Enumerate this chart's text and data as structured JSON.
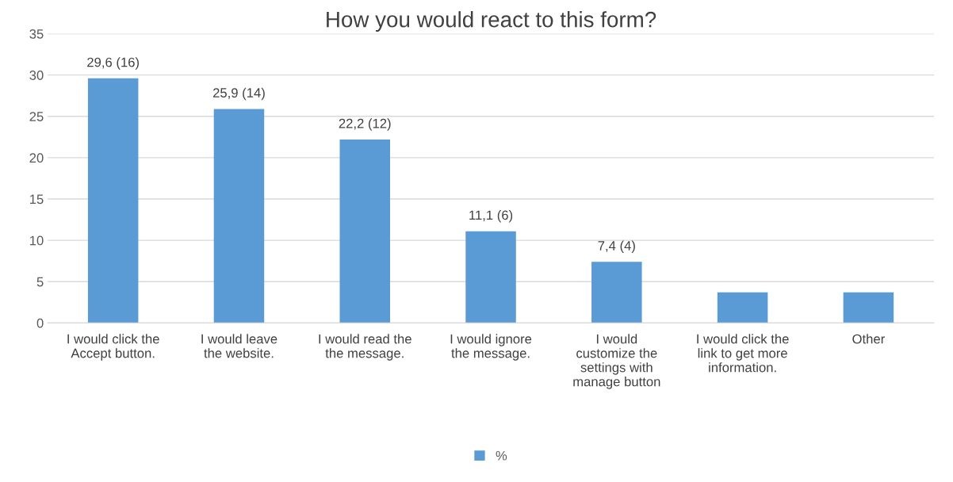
{
  "chart_data": {
    "type": "bar",
    "title": "How you would react to this form?",
    "categories": [
      "I would click the\nAccept button.",
      "I would leave\nthe website.",
      "I would read the\nthe message.",
      "I would ignore\nthe message.",
      "I would\ncustomize the\nsettings with\nmanage button",
      "I would click the\nlink to get more\ninformation.",
      "Other"
    ],
    "series": [
      {
        "name": "%",
        "color": "#5b9bd5",
        "values": [
          29.6,
          25.9,
          22.2,
          11.1,
          7.4,
          3.7,
          3.7
        ],
        "value_labels": [
          "29,6 (16)",
          "25,9 (14)",
          "22,2 (12)",
          "11,1 (6)",
          "7,4 (4)",
          null,
          null
        ]
      }
    ],
    "ylim": [
      0,
      35
    ],
    "yticks": [
      0,
      5,
      10,
      15,
      20,
      25,
      30,
      35
    ],
    "grid": "y",
    "legend": "bottom"
  }
}
